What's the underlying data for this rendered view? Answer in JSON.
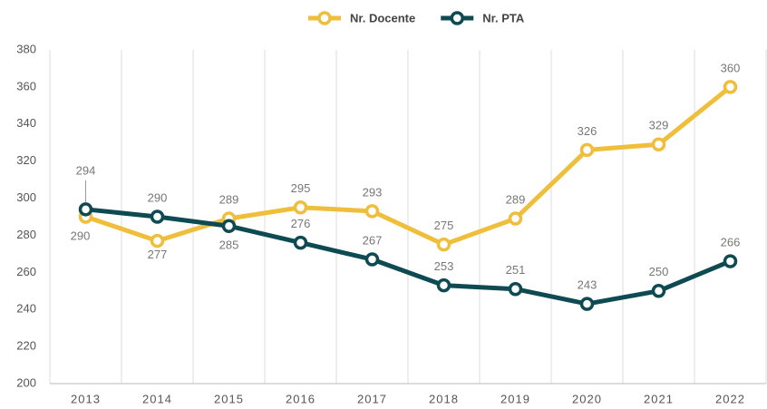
{
  "chart_data": {
    "type": "line",
    "categories": [
      "2013",
      "2014",
      "2015",
      "2016",
      "2017",
      "2018",
      "2019",
      "2020",
      "2021",
      "2022"
    ],
    "series": [
      {
        "name": "Nr. Docente",
        "color": "#efbe3a",
        "values": [
          290,
          277,
          289,
          295,
          293,
          275,
          289,
          326,
          329,
          360
        ]
      },
      {
        "name": "Nr. PTA",
        "color": "#0e4a52",
        "values": [
          294,
          290,
          285,
          276,
          267,
          253,
          251,
          243,
          250,
          266
        ]
      }
    ],
    "ylim": [
      200,
      380
    ],
    "yticks": [
      200,
      220,
      240,
      260,
      280,
      300,
      320,
      340,
      360,
      380
    ],
    "grid": true,
    "legend": "top"
  }
}
